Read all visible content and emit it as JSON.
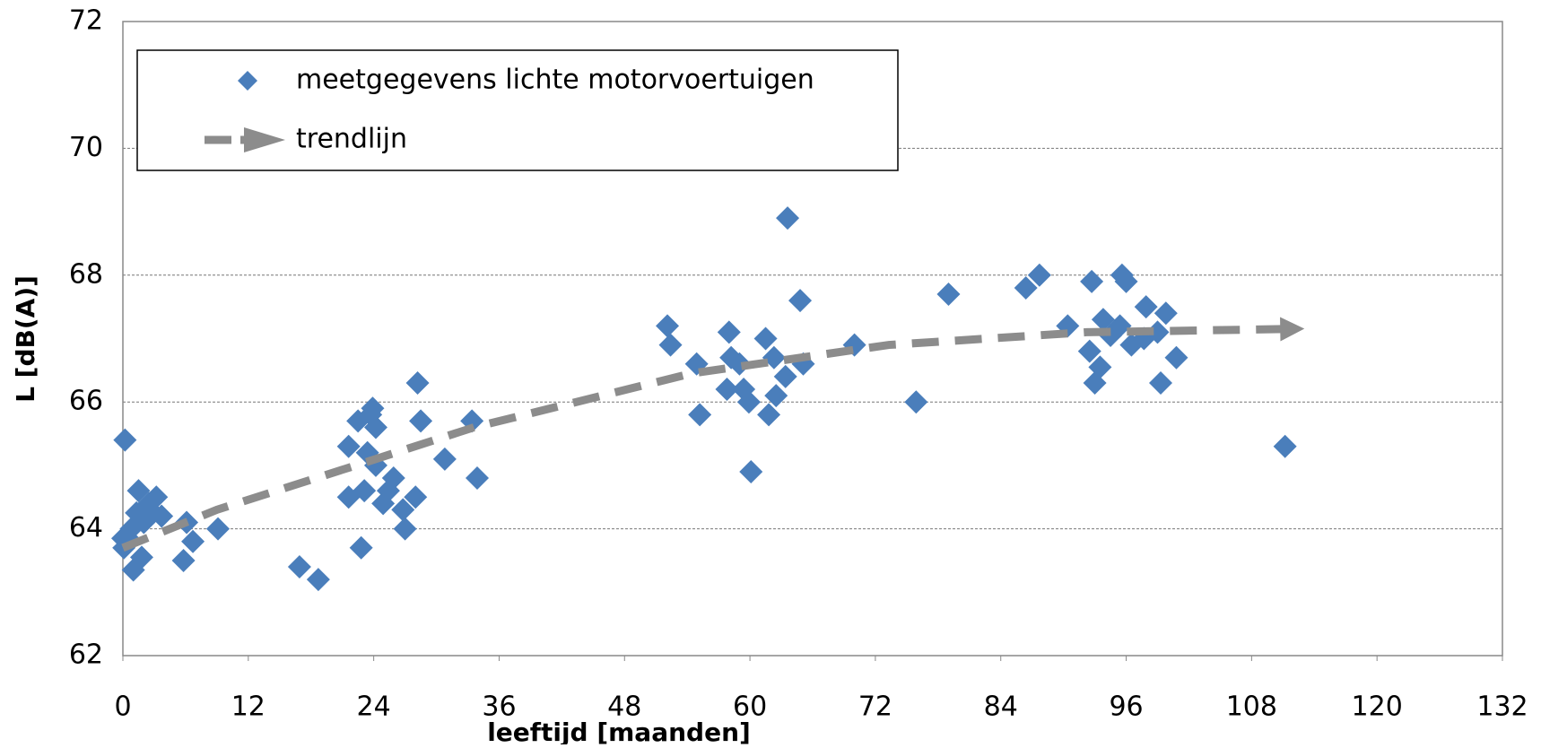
{
  "chart_data": {
    "type": "scatter",
    "xlabel": "leeftijd [maanden]",
    "ylabel": "L [dB(A)]",
    "xlim": [
      0,
      132
    ],
    "xticks": [
      0,
      12,
      24,
      36,
      48,
      60,
      72,
      84,
      96,
      108,
      120,
      132
    ],
    "ylim": [
      62,
      72
    ],
    "yticks": [
      62,
      64,
      66,
      68,
      70,
      72
    ],
    "grid": true,
    "legend": "upper left",
    "series": [
      {
        "name": "meetgegevens lichte motorvoertuigen",
        "type": "scatter",
        "color": "#4a7ebb",
        "x": [
          0.2,
          0,
          0.1,
          0.5,
          1.0,
          1.5,
          1.3,
          1.8,
          2.0,
          2.5,
          2.9,
          3.2,
          3.7,
          0.8,
          5.8,
          6.1,
          6.7,
          9.1,
          16.9,
          18.7,
          21.6,
          21.6,
          22.5,
          22.8,
          23.1,
          23.4,
          23.7,
          23.9,
          24.2,
          24.2,
          24.9,
          25.4,
          25.9,
          26.8,
          27.0,
          28.0,
          28.2,
          28.5,
          30.8,
          33.4,
          33.9,
          52.1,
          52.4,
          54.9,
          55.2,
          58.0,
          58.2,
          57.8,
          59.0,
          59.4,
          59.9,
          60.1,
          61.5,
          61.8,
          62.3,
          62.5,
          63.4,
          63.6,
          64.8,
          65.1,
          70.0,
          75.9,
          79.0,
          86.4,
          87.7,
          90.4,
          92.7,
          92.5,
          93.0,
          93.5,
          93.8,
          94.5,
          95.4,
          95.6,
          96.0,
          96.5,
          97.7,
          97.9,
          99.0,
          99.3,
          99.8,
          100.8,
          111.2
        ],
        "values": [
          65.4,
          63.85,
          63.7,
          63.85,
          63.35,
          64.6,
          64.25,
          63.55,
          64.1,
          64.4,
          64.25,
          64.5,
          64.2,
          64.0,
          63.5,
          64.1,
          63.8,
          64.0,
          63.4,
          63.2,
          65.3,
          64.5,
          65.7,
          63.7,
          64.6,
          65.2,
          65.8,
          65.9,
          65.6,
          65.0,
          64.4,
          64.6,
          64.8,
          64.3,
          64.0,
          64.5,
          66.3,
          65.7,
          65.1,
          65.7,
          64.8,
          67.2,
          66.9,
          66.6,
          65.8,
          67.1,
          66.7,
          66.2,
          66.6,
          66.2,
          66.0,
          64.9,
          67.0,
          65.8,
          66.7,
          66.1,
          66.4,
          68.9,
          67.6,
          66.6,
          66.9,
          66.0,
          67.7,
          67.8,
          68.0,
          67.2,
          67.9,
          66.8,
          66.3,
          66.55,
          67.3,
          67.05,
          67.2,
          68.0,
          67.9,
          66.9,
          67.0,
          67.5,
          67.1,
          66.3,
          67.4,
          66.7,
          65.3
        ]
      },
      {
        "name": "trendlijn",
        "type": "line",
        "color": "#8c8c8c",
        "dashed": true,
        "arrow": true,
        "x": [
          0,
          9,
          22.3,
          33.6,
          54.4,
          73.3,
          92.2,
          111.2
        ],
        "values": [
          63.7,
          64.3,
          65.0,
          65.6,
          66.45,
          66.9,
          67.1,
          67.15
        ]
      }
    ]
  }
}
